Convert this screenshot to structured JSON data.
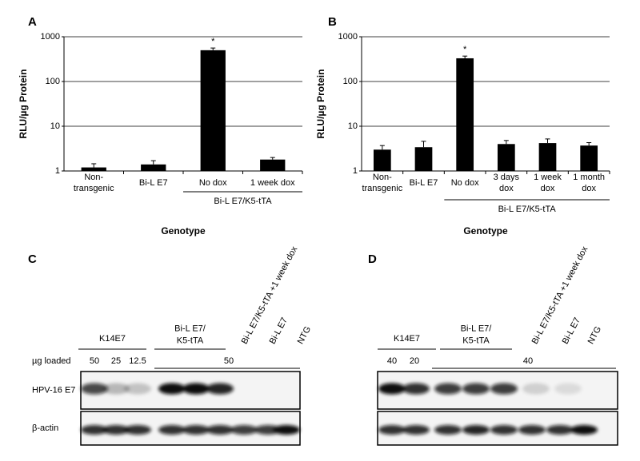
{
  "chart_data": [
    {
      "type": "bar",
      "panel": "A",
      "ylabel": "RLU/µg Protein",
      "xlabel": "Genotype",
      "categories": [
        "Non-\ntransgenic",
        "Bi-L E7",
        "No dox",
        "1 week dox"
      ],
      "values": [
        1.2,
        1.4,
        500,
        1.8
      ],
      "errors": [
        0.25,
        0.3,
        60,
        0.2
      ],
      "group": {
        "label": "Bi-L E7/K5-tTA",
        "categories": [
          2,
          3
        ]
      },
      "annotation": {
        "text": "*",
        "category": 2
      },
      "ylim": [
        1,
        1000
      ],
      "yticks": [
        1,
        10,
        100,
        1000
      ],
      "log": true,
      "grid": true,
      "color": "#000000"
    },
    {
      "type": "bar",
      "panel": "B",
      "ylabel": "RLU/µg Protein",
      "xlabel": "Genotype",
      "categories": [
        "Non-\ntransgenic",
        "Bi-L E7",
        "No dox",
        "3 days\ndox",
        "1 week\ndox",
        "1 month\ndox"
      ],
      "values": [
        3.0,
        3.4,
        330,
        4.0,
        4.2,
        3.7
      ],
      "errors": [
        0.7,
        1.2,
        40,
        0.8,
        1.0,
        0.6
      ],
      "group": {
        "label": "Bi-L E7/K5-tTA",
        "categories": [
          2,
          5
        ]
      },
      "annotation": {
        "text": "*",
        "category": 2
      },
      "ylim": [
        1,
        1000
      ],
      "yticks": [
        1,
        10,
        100,
        1000
      ],
      "log": true,
      "grid": true,
      "color": "#000000"
    }
  ],
  "blots": [
    {
      "panel": "C",
      "groups": [
        "K14E7",
        "Bi-L E7/\nK5-tTA"
      ],
      "lanes": [
        "Bi-L E7/K5-tTA +1 week dox",
        "Bi-L E7",
        "NTG"
      ],
      "loaded_label": "µg loaded",
      "loads": [
        50,
        25,
        12.5,
        50
      ],
      "rows": [
        "HPV-16 E7",
        "β-actin"
      ]
    },
    {
      "panel": "D",
      "groups": [
        "K14E7",
        "Bi-L E7/\nK5-tTA"
      ],
      "lanes": [
        "Bi-L E7/K5-tTA +1 week dox",
        "Bi-L E7",
        "NTG"
      ],
      "loads": [
        40,
        20,
        40
      ]
    }
  ]
}
